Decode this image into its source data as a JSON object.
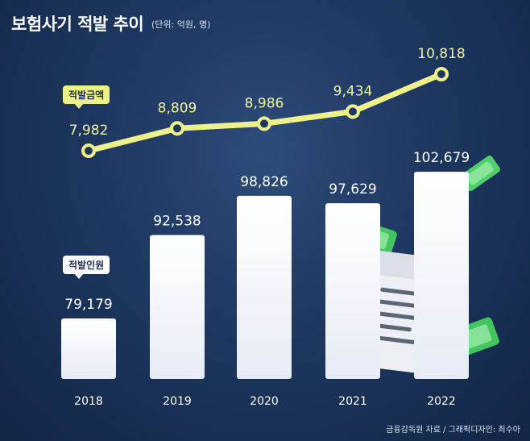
{
  "header": {
    "title": "보험사기 적발 추이",
    "unit": "(단위: 억원, 명)"
  },
  "legend": {
    "line_tag": "적발금액",
    "bar_tag": "적발인원"
  },
  "source": "금융감독원 자료 / 그래픽디자인: 최수아",
  "colors": {
    "background": "#1d3760",
    "bars": "#ffffff",
    "line": "#eef18a"
  },
  "chart_data": {
    "type": "bar",
    "categories": [
      "2018",
      "2019",
      "2020",
      "2021",
      "2022"
    ],
    "series": [
      {
        "name": "적발인원",
        "type": "bar",
        "values": [
          79179,
          92538,
          98826,
          97629,
          102679
        ],
        "labels": [
          "79,179",
          "92,538",
          "98,826",
          "97,629",
          "102,679"
        ]
      },
      {
        "name": "적발금액",
        "type": "line",
        "values": [
          7982,
          8809,
          8986,
          9434,
          10818
        ],
        "labels": [
          "7,982",
          "8,809",
          "8,986",
          "9,434",
          "10,818"
        ]
      }
    ],
    "title": "보험사기 적발 추이",
    "xlabel": "",
    "ylabel": "",
    "grid": false,
    "legend": "inline"
  }
}
